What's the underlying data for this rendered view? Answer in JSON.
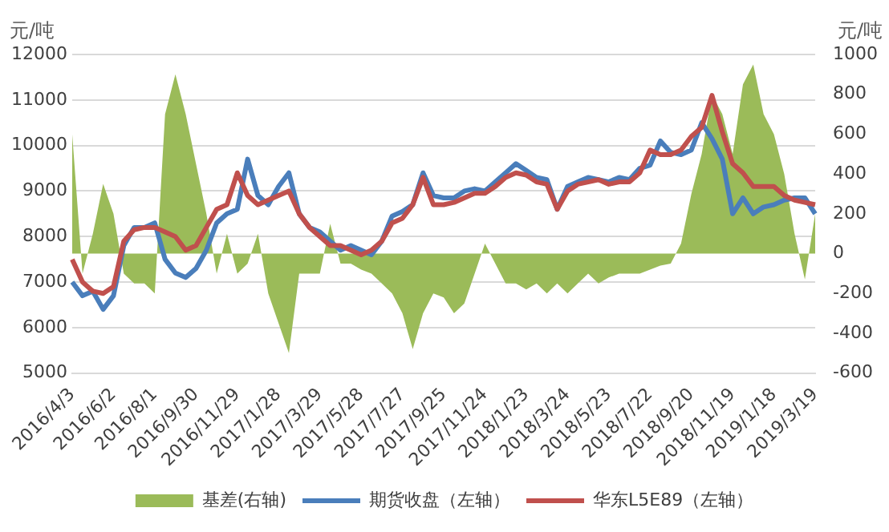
{
  "chart_data": {
    "type": "line",
    "ylabel": "元/吨",
    "y2label": "元/吨",
    "categories": [
      "2016/4/3",
      null,
      null,
      null,
      "2016/6/2",
      null,
      null,
      null,
      "2016/8/1",
      null,
      null,
      null,
      "2016/9/30",
      null,
      null,
      null,
      "2016/11/29",
      null,
      null,
      null,
      "2017/1/28",
      null,
      null,
      null,
      "2017/3/29",
      null,
      null,
      null,
      "2017/5/28",
      null,
      null,
      null,
      "2017/7/27",
      null,
      null,
      null,
      "2017/9/25",
      null,
      null,
      null,
      "2017/11/24",
      null,
      null,
      null,
      "2018/1/23",
      null,
      null,
      null,
      "2018/3/24",
      null,
      null,
      null,
      "2018/5/23",
      null,
      null,
      null,
      "2018/7/22",
      null,
      null,
      null,
      "2018/9/20",
      null,
      null,
      null,
      "2018/11/19",
      null,
      null,
      null,
      "2019/1/18",
      null,
      null,
      null,
      "2019/3/19"
    ],
    "series": [
      {
        "name": "基差(右轴)",
        "type": "area",
        "axis": "y2",
        "color": "#9bbb59",
        "values": [
          600,
          -100,
          100,
          350,
          200,
          -100,
          -150,
          -150,
          -200,
          700,
          900,
          700,
          450,
          200,
          -100,
          100,
          -100,
          -50,
          100,
          -200,
          -350,
          -500,
          -100,
          -100,
          -100,
          150,
          -50,
          -50,
          -80,
          -100,
          -150,
          -200,
          -300,
          -480,
          -300,
          -200,
          -220,
          -300,
          -250,
          -100,
          50,
          -50,
          -150,
          -150,
          -180,
          -150,
          -200,
          -150,
          -200,
          -150,
          -100,
          -150,
          -120,
          -100,
          -100,
          -100,
          -80,
          -60,
          -50,
          50,
          300,
          500,
          800,
          700,
          500,
          850,
          950,
          700,
          600,
          400,
          100,
          -130,
          200
        ]
      },
      {
        "name": "期货收盘（左轴）",
        "type": "line",
        "color": "#4a7ebb",
        "values": [
          7000,
          6700,
          6800,
          6400,
          6700,
          7800,
          8200,
          8200,
          8300,
          7500,
          7200,
          7100,
          7300,
          7700,
          8300,
          8500,
          8600,
          9700,
          8900,
          8700,
          9100,
          9400,
          8500,
          8200,
          8100,
          7900,
          7700,
          7800,
          7700,
          7600,
          7900,
          8450,
          8550,
          8700,
          9400,
          8900,
          8850,
          8850,
          9000,
          9050,
          9000,
          9200,
          9400,
          9600,
          9450,
          9300,
          9250,
          8600,
          9100,
          9200,
          9300,
          9250,
          9200,
          9300,
          9250,
          9500,
          9570,
          10100,
          9850,
          9800,
          9900,
          10500,
          10150,
          9700,
          8500,
          8850,
          8500,
          8650,
          8700,
          8800,
          8850,
          8850,
          8500
        ]
      },
      {
        "name": "华东L5E89（左轴）",
        "type": "line",
        "color": "#c0504d",
        "values": [
          7500,
          7000,
          6800,
          6750,
          6900,
          7900,
          8150,
          8200,
          8200,
          8100,
          8000,
          7700,
          7800,
          8200,
          8600,
          8700,
          9400,
          8900,
          8700,
          8800,
          8900,
          9000,
          8500,
          8200,
          8000,
          7800,
          7800,
          7700,
          7600,
          7700,
          7900,
          8300,
          8400,
          8700,
          9300,
          8700,
          8700,
          8750,
          8850,
          8950,
          8950,
          9100,
          9300,
          9400,
          9350,
          9200,
          9150,
          8600,
          9000,
          9150,
          9200,
          9250,
          9150,
          9200,
          9200,
          9400,
          9900,
          9800,
          9800,
          9900,
          10200,
          10400,
          11100,
          10300,
          9600,
          9400,
          9100,
          9100,
          9100,
          8900,
          8800,
          8750,
          8700
        ]
      }
    ],
    "ylim": [
      5000,
      12000
    ],
    "yticks": [
      5000,
      6000,
      7000,
      8000,
      9000,
      10000,
      11000,
      12000
    ],
    "y2lim": [
      -600,
      1000
    ],
    "y2ticks": [
      -600,
      -400,
      -200,
      0,
      200,
      400,
      600,
      800,
      1000
    ],
    "grid": "y",
    "legend": "bottom",
    "marker": "none",
    "line_style": "solid"
  }
}
